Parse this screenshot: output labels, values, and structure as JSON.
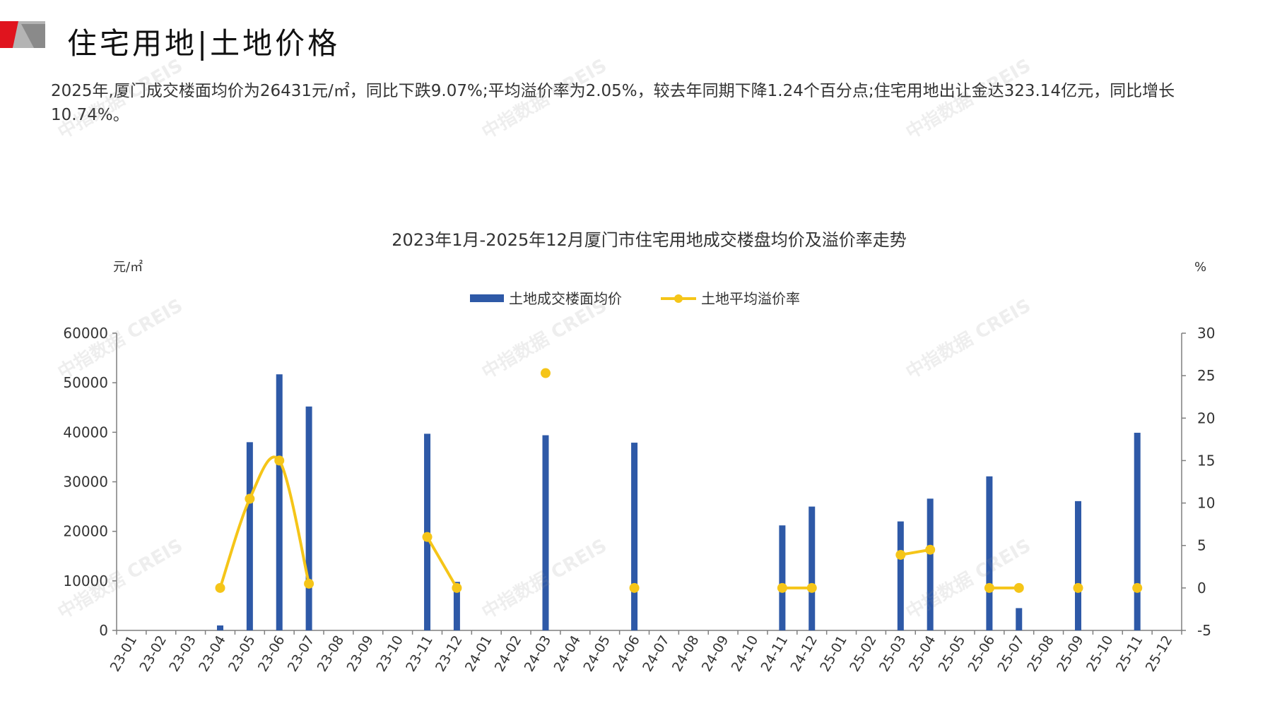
{
  "header": {
    "title": "住宅用地|土地价格"
  },
  "summary": {
    "text": "2025年,厦门成交楼面均价为26431元/㎡，同比下跌9.07%;平均溢价率为2.05%，较去年同期下降1.24个百分点;住宅用地出让金达323.14亿元，同比增长10.74%。"
  },
  "watermark": {
    "text": "中指数据 CREIS"
  },
  "colors": {
    "bar": "#2E59A7",
    "line": "#F5C518",
    "axis": "#7f7f7f",
    "brand_red": "#E0141E",
    "brand_gray": "#B4B4B4"
  },
  "chart_data": {
    "type": "bar",
    "title": "2023年1月-2025年12月厦门市住宅用地成交楼盘均价及溢价率走势",
    "y_unit_left": "元/㎡",
    "y_unit_right": "%",
    "categories": [
      "23-01",
      "23-02",
      "23-03",
      "23-04",
      "23-05",
      "23-06",
      "23-07",
      "23-08",
      "23-09",
      "23-10",
      "23-11",
      "23-12",
      "24-01",
      "24-02",
      "24-03",
      "24-04",
      "24-05",
      "24-06",
      "24-07",
      "24-08",
      "24-09",
      "24-10",
      "24-11",
      "24-12",
      "25-01",
      "25-02",
      "25-03",
      "25-04",
      "25-05",
      "25-06",
      "25-07",
      "25-08",
      "25-09",
      "25-10",
      "25-11",
      "25-12"
    ],
    "ylim_left": [
      0,
      60000
    ],
    "yticks_left": [
      0,
      10000,
      20000,
      30000,
      40000,
      50000,
      60000
    ],
    "ylim_right": [
      -5,
      30
    ],
    "yticks_right": [
      -5,
      0,
      5,
      10,
      15,
      20,
      25,
      30
    ],
    "legend_position": "top-center",
    "grid": false,
    "series": [
      {
        "name": "土地成交楼面均价",
        "type": "bar",
        "axis": "left",
        "values": [
          null,
          null,
          null,
          1000,
          38000,
          51700,
          45200,
          null,
          null,
          null,
          39700,
          9800,
          null,
          null,
          39400,
          null,
          null,
          37900,
          null,
          null,
          null,
          null,
          21200,
          25000,
          null,
          null,
          22000,
          26600,
          null,
          31100,
          4500,
          null,
          26100,
          null,
          39900,
          null
        ]
      },
      {
        "name": "土地平均溢价率",
        "type": "line",
        "axis": "right",
        "values": [
          null,
          null,
          null,
          0,
          10.5,
          15,
          0.5,
          null,
          null,
          null,
          6,
          0,
          null,
          null,
          25.3,
          null,
          null,
          0,
          null,
          null,
          null,
          null,
          0,
          0,
          null,
          null,
          3.9,
          4.5,
          null,
          0,
          0,
          null,
          0,
          null,
          0,
          null
        ]
      }
    ]
  }
}
